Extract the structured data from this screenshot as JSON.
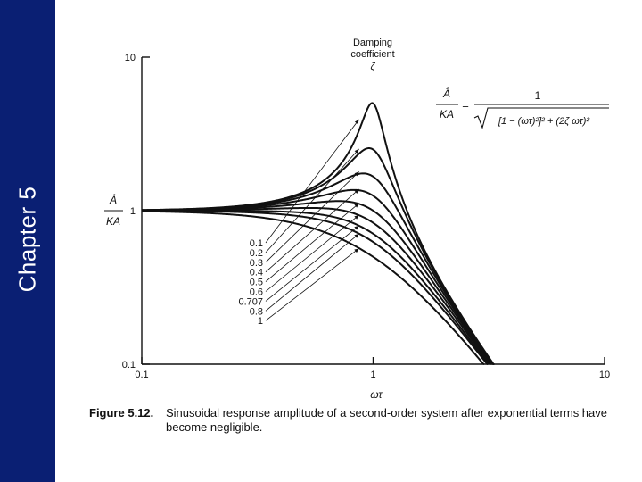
{
  "sidebar": {
    "title": "Chapter 5",
    "color": "#0a1f73"
  },
  "figure": {
    "label": "Figure 5.12.",
    "caption": "Sinusoidal response amplitude of a second-order system after exponential terms have become negligible."
  },
  "chart_data": {
    "type": "line",
    "xscale": "log",
    "yscale": "log",
    "xlim": [
      0.1,
      10
    ],
    "ylim": [
      0.1,
      10
    ],
    "xticks": [
      "0.1",
      "1",
      "10"
    ],
    "yticks": [
      "10",
      "1",
      "0.1"
    ],
    "xlabel": "ωτ",
    "ylabel_top": "Â",
    "ylabel_bottom": "KA",
    "formula_lhs_top": "Â",
    "formula_lhs_bottom": "KA",
    "formula_numerator": "1",
    "formula_denominator": "[1 − (ωτ)²]² + (2ζ ωτ)²",
    "legend_title": [
      "Damping",
      "coefficient",
      "ζ"
    ],
    "damping_values": [
      0.1,
      0.2,
      0.3,
      0.4,
      0.5,
      0.6,
      0.707,
      0.8,
      1
    ],
    "damping_labels": [
      "0.1",
      "0.2",
      "0.3",
      "0.4",
      "0.5",
      "0.6",
      "0.707",
      "0.8",
      "1"
    ]
  }
}
